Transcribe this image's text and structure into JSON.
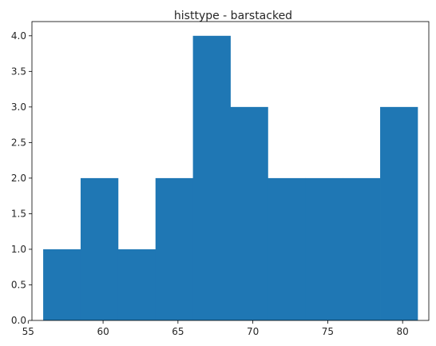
{
  "chart_data": {
    "type": "bar",
    "title": "histtype - barstacked",
    "xlabel": "",
    "ylabel": "",
    "bin_edges": [
      56.0,
      58.5,
      61.0,
      63.5,
      66.0,
      68.5,
      71.0,
      73.5,
      76.0,
      78.5,
      81.0
    ],
    "values": [
      1,
      2,
      1,
      2,
      4,
      3,
      2,
      2,
      2,
      3
    ],
    "xlim": [
      55.25,
      81.75
    ],
    "ylim": [
      0,
      4.2
    ],
    "xticks": [
      55,
      60,
      65,
      70,
      75,
      80
    ],
    "xtick_labels": [
      "55",
      "60",
      "65",
      "70",
      "75",
      "80"
    ],
    "yticks": [
      0,
      0.5,
      1.0,
      1.5,
      2.0,
      2.5,
      3.0,
      3.5,
      4.0
    ],
    "ytick_labels": [
      "0.0",
      "0.5",
      "1.0",
      "1.5",
      "2.0",
      "2.5",
      "3.0",
      "3.5",
      "4.0"
    ],
    "grid": false,
    "legend": "none",
    "bar_color": "#1f77b4",
    "bar_edge": "none"
  }
}
